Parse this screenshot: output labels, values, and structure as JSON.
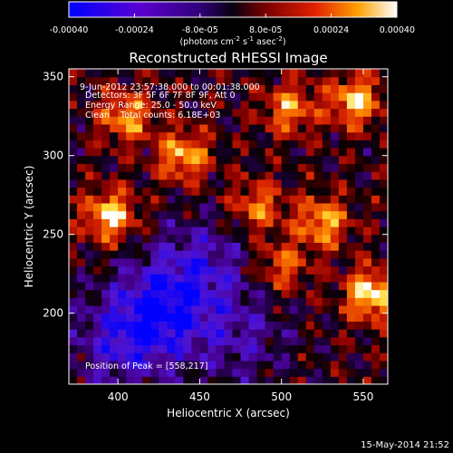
{
  "colorbar": {
    "ticks": [
      "-0.00040",
      "-0.00024",
      "-8.0e-05",
      "8.0e-05",
      "0.00024",
      "0.00040"
    ],
    "range": [
      -0.0004,
      0.0004
    ],
    "unit_prefix": "(photons cm",
    "unit_exp1": "-2",
    "unit_mid": " s",
    "unit_exp2": "-1",
    "unit_mid2": " asec",
    "unit_exp3": "-2",
    "unit_suffix": ")"
  },
  "chart_data": {
    "type": "heatmap",
    "title": "Reconstructed RHESSI Image",
    "xlabel": "Heliocentric X (arcsec)",
    "ylabel": "Heliocentric Y (arcsec)",
    "xlim": [
      370,
      565
    ],
    "ylim": [
      155,
      355
    ],
    "x_ticks": [
      400,
      450,
      500,
      550
    ],
    "y_ticks": [
      200,
      250,
      300,
      350
    ],
    "grid": false,
    "colormap": "rhessi-diverging",
    "colormap_stops": [
      "#0000ff",
      "#6a00c8",
      "#1a0030",
      "#b00000",
      "#ff7000",
      "#ffffff"
    ],
    "annotations": [
      "9-Jun-2012 23:57:38.000 to 00:01:38.000",
      "Detectors: 3F 5F 6F 7F 8F 9F, Att 0",
      "Energy Range: 25.0 - 50.0 keV",
      "Clean    Total counts: 6.18E+03"
    ],
    "peak_label": "Position of Peak = [558,217]",
    "peak": [
      558,
      217
    ],
    "hot_regions": [
      {
        "x": 395,
        "y": 262,
        "value": 0.00035
      },
      {
        "x": 405,
        "y": 325,
        "value": 0.00028
      },
      {
        "x": 440,
        "y": 300,
        "value": 0.0003
      },
      {
        "x": 505,
        "y": 330,
        "value": 0.00026
      },
      {
        "x": 545,
        "y": 335,
        "value": 0.00033
      },
      {
        "x": 485,
        "y": 268,
        "value": 0.00024
      },
      {
        "x": 525,
        "y": 258,
        "value": 0.0003
      },
      {
        "x": 500,
        "y": 230,
        "value": 0.00022
      },
      {
        "x": 555,
        "y": 212,
        "value": 0.00038
      }
    ],
    "cold_regions": [
      {
        "x": 425,
        "y": 200,
        "value": -0.0003
      },
      {
        "x": 450,
        "y": 230,
        "value": -0.0002
      },
      {
        "x": 400,
        "y": 180,
        "value": -0.00018
      },
      {
        "x": 475,
        "y": 185,
        "value": -0.00015
      }
    ]
  },
  "footer": {
    "timestamp": "15-May-2014 21:52"
  }
}
